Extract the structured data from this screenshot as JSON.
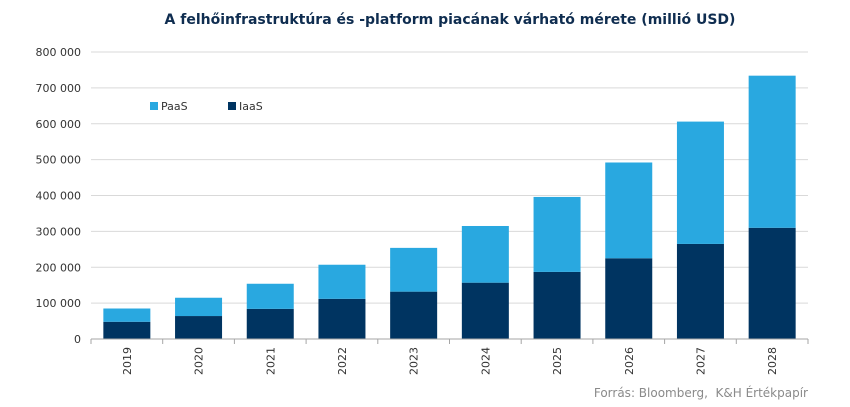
{
  "chart_data": {
    "type": "bar",
    "stacked": true,
    "title": "A felhőinfrastruktúra és -platform piacának várható mérete (millió USD)",
    "categories": [
      "2019",
      "2020",
      "2021",
      "2022",
      "2023",
      "2024",
      "2025",
      "2026",
      "2027",
      "2028"
    ],
    "series": [
      {
        "name": "IaaS",
        "color": "#003461",
        "values": [
          48000,
          64000,
          84000,
          112000,
          132000,
          157000,
          187000,
          225000,
          265000,
          310000
        ]
      },
      {
        "name": "PaaS",
        "color": "#29a8e0",
        "values": [
          37000,
          51000,
          70000,
          95000,
          122000,
          158000,
          209000,
          267000,
          341000,
          424000
        ]
      }
    ],
    "y_ticks": [
      "0",
      "100 000",
      "200 000",
      "300 000",
      "400 000",
      "500 000",
      "600 000",
      "700 000",
      "800 000"
    ],
    "ylim": [
      0,
      800000
    ],
    "grid": true,
    "legend": {
      "position": "top-left",
      "entries": [
        "PaaS",
        "IaaS"
      ]
    },
    "source": "Forrás: Bloomberg,  K&H Értékpapír",
    "gridline_color": "#d9d9d9",
    "axis_color": "#a6a6a6"
  }
}
